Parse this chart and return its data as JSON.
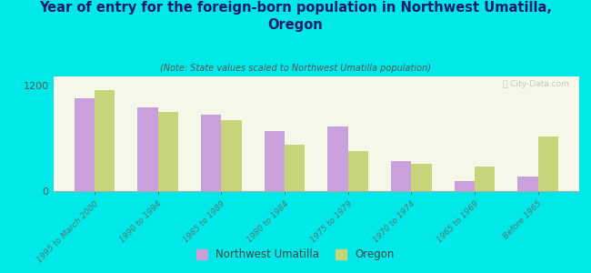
{
  "title": "Year of entry for the foreign-born population in Northwest Umatilla,\nOregon",
  "subtitle": "(Note: State values scaled to Northwest Umatilla population)",
  "categories": [
    "1995 to March 2000",
    "1990 to 1994",
    "1985 to 1989",
    "1980 to 1984",
    "1975 to 1979",
    "1970 to 1974",
    "1965 to 1969",
    "Before 1965"
  ],
  "nw_values": [
    1050,
    950,
    870,
    680,
    730,
    340,
    110,
    160
  ],
  "or_values": [
    1150,
    900,
    800,
    530,
    450,
    310,
    280,
    620
  ],
  "nw_color": "#c9a0dc",
  "or_color": "#c8d47a",
  "background_color": "#00e8e8",
  "plot_bg_start": "#f5f8e8",
  "plot_bg_end": "#e8f0d0",
  "ylim": [
    0,
    1300
  ],
  "yticks": [
    0,
    1200
  ],
  "legend_labels": [
    "Northwest Umatilla",
    "Oregon"
  ],
  "watermark": "ⓘ City-Data.com"
}
